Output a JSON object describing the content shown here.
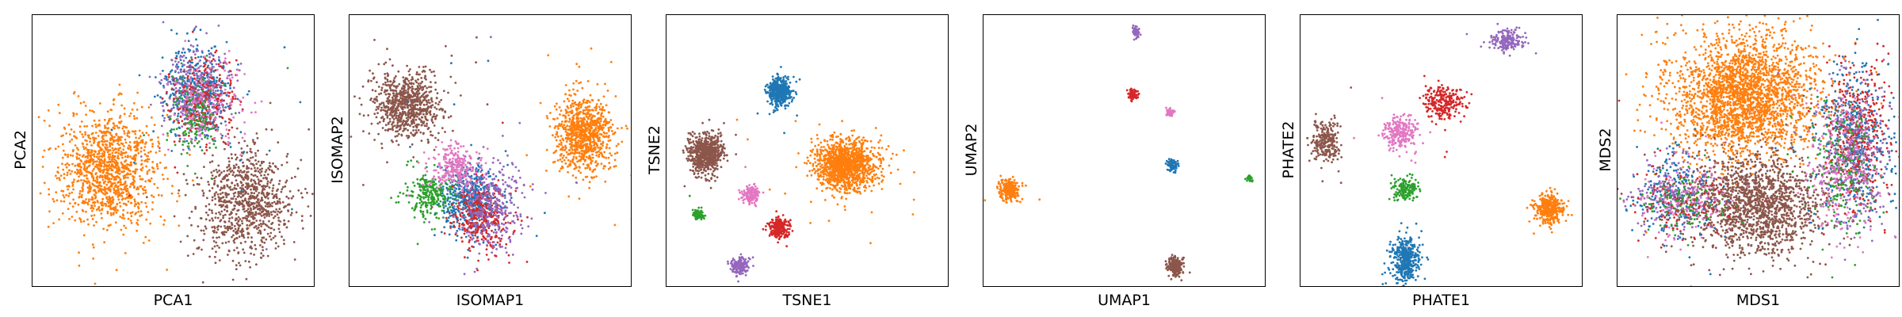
{
  "palette": {
    "blue": "#1f77b4",
    "orange": "#ff7f0e",
    "green": "#2ca02c",
    "red": "#d62728",
    "purple": "#9467bd",
    "brown": "#8c564b",
    "pink": "#e377c2"
  },
  "chart_data": [
    {
      "type": "scatter",
      "xlabel": "PCA1",
      "ylabel": "PCA2",
      "xlim": [
        0,
        1
      ],
      "ylim": [
        0,
        1
      ],
      "clusters": [
        {
          "color": "orange",
          "cx": 0.27,
          "cy": 0.43,
          "sx": 0.09,
          "sy": 0.1,
          "n": 1200
        },
        {
          "color": "brown",
          "cx": 0.75,
          "cy": 0.31,
          "sx": 0.08,
          "sy": 0.1,
          "n": 900
        },
        {
          "color": "blue",
          "cx": 0.58,
          "cy": 0.72,
          "sx": 0.06,
          "sy": 0.08,
          "n": 500
        },
        {
          "color": "purple",
          "cx": 0.57,
          "cy": 0.72,
          "sx": 0.06,
          "sy": 0.08,
          "n": 300
        },
        {
          "color": "red",
          "cx": 0.6,
          "cy": 0.7,
          "sx": 0.06,
          "sy": 0.08,
          "n": 250
        },
        {
          "color": "green",
          "cx": 0.58,
          "cy": 0.62,
          "sx": 0.05,
          "sy": 0.07,
          "n": 150
        },
        {
          "color": "pink",
          "cx": 0.62,
          "cy": 0.68,
          "sx": 0.07,
          "sy": 0.08,
          "n": 180
        }
      ]
    },
    {
      "type": "scatter",
      "xlabel": "ISOMAP1",
      "ylabel": "ISOMAP2",
      "xlim": [
        0,
        1
      ],
      "ylim": [
        0,
        1
      ],
      "clusters": [
        {
          "color": "brown",
          "cx": 0.2,
          "cy": 0.67,
          "sx": 0.06,
          "sy": 0.06,
          "n": 800
        },
        {
          "color": "orange",
          "cx": 0.83,
          "cy": 0.56,
          "sx": 0.05,
          "sy": 0.07,
          "n": 900
        },
        {
          "color": "blue",
          "cx": 0.42,
          "cy": 0.33,
          "sx": 0.05,
          "sy": 0.06,
          "n": 500
        },
        {
          "color": "red",
          "cx": 0.47,
          "cy": 0.26,
          "sx": 0.05,
          "sy": 0.06,
          "n": 350
        },
        {
          "color": "purple",
          "cx": 0.5,
          "cy": 0.3,
          "sx": 0.06,
          "sy": 0.08,
          "n": 350
        },
        {
          "color": "green",
          "cx": 0.28,
          "cy": 0.34,
          "sx": 0.04,
          "sy": 0.04,
          "n": 250
        },
        {
          "color": "pink",
          "cx": 0.37,
          "cy": 0.44,
          "sx": 0.04,
          "sy": 0.04,
          "n": 250
        }
      ]
    },
    {
      "type": "scatter",
      "xlabel": "TSNE1",
      "ylabel": "TSNE2",
      "xlim": [
        0,
        1
      ],
      "ylim": [
        0,
        1
      ],
      "clusters": [
        {
          "color": "blue",
          "cx": 0.4,
          "cy": 0.72,
          "sx": 0.02,
          "sy": 0.025,
          "n": 450
        },
        {
          "color": "brown",
          "cx": 0.14,
          "cy": 0.49,
          "sx": 0.03,
          "sy": 0.035,
          "n": 650
        },
        {
          "color": "orange",
          "cx": 0.63,
          "cy": 0.45,
          "sx": 0.055,
          "sy": 0.045,
          "n": 1300
        },
        {
          "color": "pink",
          "cx": 0.3,
          "cy": 0.34,
          "sx": 0.015,
          "sy": 0.015,
          "n": 150
        },
        {
          "color": "green",
          "cx": 0.11,
          "cy": 0.27,
          "sx": 0.01,
          "sy": 0.012,
          "n": 80
        },
        {
          "color": "red",
          "cx": 0.4,
          "cy": 0.22,
          "sx": 0.018,
          "sy": 0.02,
          "n": 200
        },
        {
          "color": "purple",
          "cx": 0.26,
          "cy": 0.08,
          "sx": 0.016,
          "sy": 0.015,
          "n": 150
        }
      ]
    },
    {
      "type": "scatter",
      "xlabel": "UMAP1",
      "ylabel": "UMAP2",
      "xlim": [
        0,
        1
      ],
      "ylim": [
        0,
        1
      ],
      "clusters": [
        {
          "color": "purple",
          "cx": 0.54,
          "cy": 0.94,
          "sx": 0.006,
          "sy": 0.01,
          "n": 60
        },
        {
          "color": "red",
          "cx": 0.53,
          "cy": 0.71,
          "sx": 0.008,
          "sy": 0.01,
          "n": 80
        },
        {
          "color": "pink",
          "cx": 0.66,
          "cy": 0.64,
          "sx": 0.007,
          "sy": 0.008,
          "n": 50
        },
        {
          "color": "blue",
          "cx": 0.67,
          "cy": 0.45,
          "sx": 0.01,
          "sy": 0.012,
          "n": 80
        },
        {
          "color": "green",
          "cx": 0.94,
          "cy": 0.4,
          "sx": 0.006,
          "sy": 0.006,
          "n": 30
        },
        {
          "color": "orange",
          "cx": 0.09,
          "cy": 0.36,
          "sx": 0.018,
          "sy": 0.02,
          "n": 250
        },
        {
          "color": "brown",
          "cx": 0.68,
          "cy": 0.08,
          "sx": 0.014,
          "sy": 0.018,
          "n": 200
        }
      ]
    },
    {
      "type": "scatter",
      "xlabel": "PHATE1",
      "ylabel": "PHATE2",
      "xlim": [
        0,
        1
      ],
      "ylim": [
        0,
        1
      ],
      "clusters": [
        {
          "color": "purple",
          "cx": 0.73,
          "cy": 0.91,
          "sx": 0.03,
          "sy": 0.02,
          "n": 180
        },
        {
          "color": "red",
          "cx": 0.51,
          "cy": 0.68,
          "sx": 0.035,
          "sy": 0.03,
          "n": 250
        },
        {
          "color": "pink",
          "cx": 0.35,
          "cy": 0.57,
          "sx": 0.03,
          "sy": 0.035,
          "n": 250
        },
        {
          "color": "brown",
          "cx": 0.09,
          "cy": 0.54,
          "sx": 0.025,
          "sy": 0.04,
          "n": 250
        },
        {
          "color": "green",
          "cx": 0.37,
          "cy": 0.36,
          "sx": 0.02,
          "sy": 0.02,
          "n": 150
        },
        {
          "color": "orange",
          "cx": 0.88,
          "cy": 0.29,
          "sx": 0.025,
          "sy": 0.03,
          "n": 350
        },
        {
          "color": "blue",
          "cx": 0.37,
          "cy": 0.1,
          "sx": 0.025,
          "sy": 0.045,
          "n": 400
        }
      ]
    },
    {
      "type": "scatter",
      "xlabel": "MDS1",
      "ylabel": "MDS2",
      "xlim": [
        0,
        1
      ],
      "ylim": [
        0,
        1
      ],
      "clusters": [
        {
          "color": "orange",
          "cx": 0.45,
          "cy": 0.7,
          "sx": 0.13,
          "sy": 0.11,
          "n": 2500
        },
        {
          "color": "brown",
          "cx": 0.5,
          "cy": 0.3,
          "sx": 0.12,
          "sy": 0.09,
          "n": 1600
        },
        {
          "color": "blue",
          "cx": 0.83,
          "cy": 0.52,
          "sx": 0.07,
          "sy": 0.14,
          "n": 450
        },
        {
          "color": "red",
          "cx": 0.85,
          "cy": 0.55,
          "sx": 0.06,
          "sy": 0.14,
          "n": 400
        },
        {
          "color": "purple",
          "cx": 0.84,
          "cy": 0.5,
          "sx": 0.06,
          "sy": 0.13,
          "n": 300
        },
        {
          "color": "green",
          "cx": 0.8,
          "cy": 0.45,
          "sx": 0.06,
          "sy": 0.12,
          "n": 200
        },
        {
          "color": "pink",
          "cx": 0.8,
          "cy": 0.42,
          "sx": 0.07,
          "sy": 0.13,
          "n": 250
        },
        {
          "color": "blue",
          "cx": 0.2,
          "cy": 0.34,
          "sx": 0.08,
          "sy": 0.07,
          "n": 250
        },
        {
          "color": "purple",
          "cx": 0.2,
          "cy": 0.34,
          "sx": 0.08,
          "sy": 0.07,
          "n": 180
        },
        {
          "color": "pink",
          "cx": 0.22,
          "cy": 0.34,
          "sx": 0.08,
          "sy": 0.07,
          "n": 150
        },
        {
          "color": "red",
          "cx": 0.22,
          "cy": 0.33,
          "sx": 0.08,
          "sy": 0.07,
          "n": 120
        },
        {
          "color": "green",
          "cx": 0.24,
          "cy": 0.32,
          "sx": 0.08,
          "sy": 0.06,
          "n": 100
        }
      ]
    }
  ]
}
